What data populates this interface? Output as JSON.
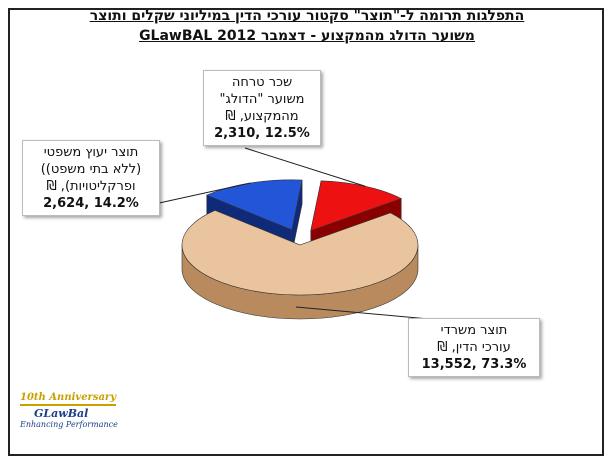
{
  "chart_data": {
    "type": "pie",
    "style": "3d-exploded",
    "title_lines": [
      "התפלגות תרומה ל-\"תוצר\" סקטור עורכי הדין במיליוני שקלים ותוצר",
      "משוער הדולג מהמקצוע - דצמבר 2012 GLawBAL"
    ],
    "slices": [
      {
        "label_lines": [
          "תוצר משרדי",
          "עורכי הדין, ₪"
        ],
        "value": 13552,
        "value_text": "13,552",
        "percent": 73.3,
        "percent_text": "73.3%",
        "color": "#e9c49f",
        "side_color": "#b98a5e"
      },
      {
        "label_lines": [
          "תוצר יעוץ משפטי",
          "(ללא בתי משפט))",
          "ופרקליטויות), ₪"
        ],
        "value": 2624,
        "value_text": "2,624",
        "percent": 14.2,
        "percent_text": "14.2%",
        "color": "#2355d8",
        "side_color": "#102a7a"
      },
      {
        "label_lines": [
          "שכר טרחה",
          "משוער \"הדולג\"",
          "מהמקצוע, ₪"
        ],
        "value": 2310,
        "value_text": "2,310",
        "percent": 12.5,
        "percent_text": "12.5%",
        "color": "#ee1111",
        "side_color": "#8a0000"
      }
    ]
  },
  "logo": {
    "line1": "10th Anniversary",
    "line2": "GLawBal",
    "line3": "Enhancing Performance"
  }
}
